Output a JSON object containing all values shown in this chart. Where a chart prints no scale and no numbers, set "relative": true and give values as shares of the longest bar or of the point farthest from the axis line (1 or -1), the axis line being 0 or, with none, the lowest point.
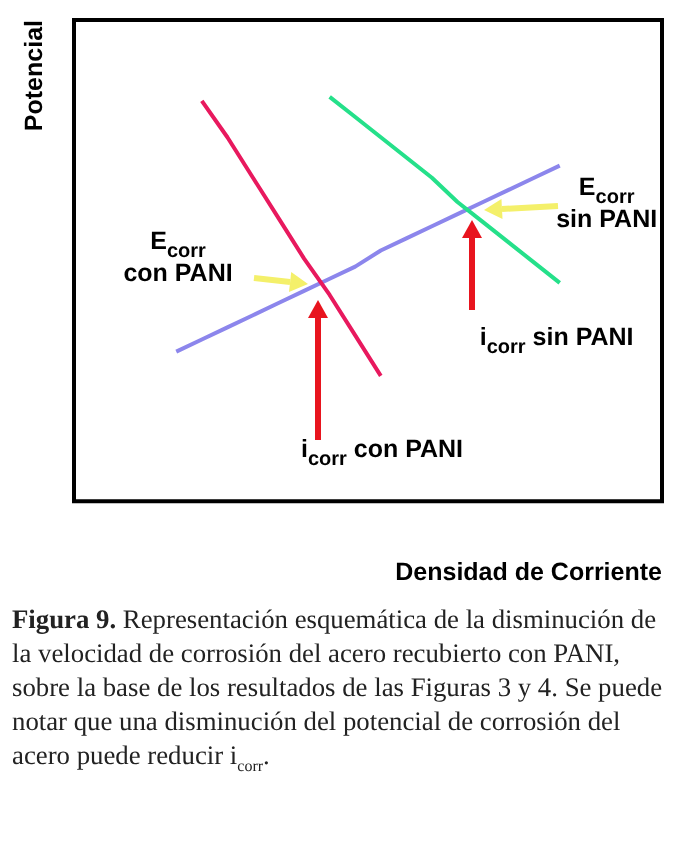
{
  "chart_data": {
    "type": "line",
    "relative": true,
    "xlabel": "Densidad de Corriente",
    "ylabel": "Potencial",
    "grid": false,
    "legend": false,
    "marker": "none",
    "line_style": "solid",
    "categories": [
      null,
      null,
      null,
      null,
      null,
      null,
      null,
      null,
      null,
      null,
      null,
      null,
      null,
      null,
      null,
      null,
      null,
      null,
      null,
      null,
      null,
      null,
      null,
      null
    ],
    "series": [
      {
        "color": "#e8195e",
        "values": [
          null,
          null,
          null,
          null,
          null,
          0.99,
          0.9,
          0.8,
          0.7,
          0.6,
          0.51,
          0.41,
          0.31,
          null,
          null,
          null,
          null,
          null,
          null,
          null,
          null,
          null,
          null,
          null
        ]
      },
      {
        "color": "#25e08a",
        "values": [
          null,
          null,
          null,
          null,
          null,
          null,
          null,
          null,
          null,
          null,
          1,
          0.95,
          0.9,
          0.85,
          0.8,
          0.74,
          0.69,
          0.64,
          0.59,
          0.54,
          null,
          null,
          null,
          null
        ]
      },
      {
        "color": "#8c86ec",
        "values": [
          null,
          null,
          null,
          null,
          0.37,
          0.4,
          0.43,
          0.46,
          0.49,
          0.52,
          0.55,
          0.58,
          0.62,
          0.65,
          0.68,
          0.71,
          0.74,
          0.77,
          0.8,
          0.83,
          null,
          null,
          null,
          null
        ]
      }
    ],
    "annotations": [
      "E$_{corr}$\ncon PANI",
      "i$_{corr}$ con PANI",
      "E$_{corr}$\nsin PANI",
      "i$_{corr}$ sin PANI",
      "Figura 9. Representación esquemática de la disminución de la velocidad de corrosión del acero recubierto con PANI, sobre la  base de los resultados de las Figuras 3 y 4. Se puede notar que una disminución del potencial de corrosión del acero puede reducir i$_{corr}$."
    ]
  }
}
